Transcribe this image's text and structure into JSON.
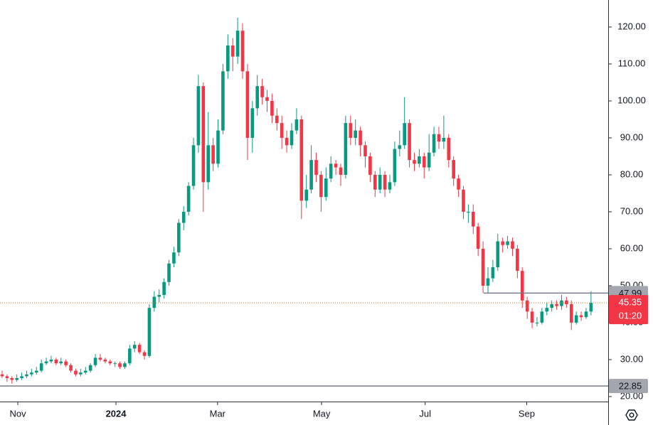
{
  "chart_data": {
    "type": "candlestick",
    "up_color": "#089981",
    "down_color": "#f23645",
    "grid": false,
    "ylim": [
      18.65,
      127.3
    ],
    "yticks": [
      {
        "value": 20,
        "label": "20.00"
      },
      {
        "value": 30,
        "label": "30.00"
      },
      {
        "value": 40,
        "label": "40.00"
      },
      {
        "value": 50,
        "label": "50.00"
      },
      {
        "value": 60,
        "label": "60.00"
      },
      {
        "value": 70,
        "label": "70.00"
      },
      {
        "value": 80,
        "label": "80.00"
      },
      {
        "value": 90,
        "label": "90.00"
      },
      {
        "value": 100,
        "label": "100.00"
      },
      {
        "value": 110,
        "label": "110.00"
      },
      {
        "value": 120,
        "label": "120.00"
      }
    ],
    "xlim": [
      -0.43,
      123.5
    ],
    "xticks": [
      {
        "value": 3.2,
        "label": "Nov"
      },
      {
        "value": 23.2,
        "label": "2024"
      },
      {
        "value": 43.9,
        "label": "Mar"
      },
      {
        "value": 65.1,
        "label": "May"
      },
      {
        "value": 86.2,
        "label": "Jul"
      },
      {
        "value": 106.9,
        "label": "Sep"
      }
    ],
    "open": [
      26,
      25.5,
      25,
      24.5,
      25,
      25.5,
      26,
      26.5,
      27,
      29,
      29.5,
      30,
      29,
      29.5,
      28.5,
      27,
      26,
      26.5,
      27,
      28.5,
      30.5,
      30,
      29.5,
      29,
      29,
      28,
      29,
      33,
      34,
      32,
      31,
      44,
      47,
      47.5,
      51,
      56,
      59,
      67,
      70,
      77,
      88,
      104,
      78,
      88,
      83,
      92,
      108,
      115,
      112,
      119,
      108,
      90,
      98,
      104,
      101,
      100,
      96,
      94,
      90,
      88,
      92,
      95,
      73,
      76,
      84,
      80,
      74,
      79,
      83,
      82,
      80,
      94,
      90,
      92,
      88,
      85,
      80,
      76,
      80,
      76,
      78,
      87,
      88,
      94,
      84,
      83,
      85,
      82,
      86,
      91,
      89,
      90,
      84,
      79,
      76,
      70,
      70,
      66,
      60,
      50,
      52,
      55,
      62,
      61,
      62,
      60,
      54,
      46,
      43,
      40,
      40,
      43,
      44,
      45,
      44.5,
      46,
      45,
      40,
      42,
      41.5,
      43
    ],
    "high": [
      27,
      26,
      25.5,
      26,
      26.5,
      27,
      27.5,
      28,
      30,
      30.5,
      31,
      30.5,
      30.5,
      30,
      29,
      27.5,
      27.5,
      28,
      29,
      31.5,
      31.5,
      30.5,
      30,
      29.5,
      29.5,
      29.5,
      34,
      35,
      34.5,
      32.5,
      45,
      48.5,
      49,
      52,
      57,
      60.5,
      68,
      71.5,
      78,
      90,
      107,
      105,
      97,
      90,
      95,
      110,
      118,
      117,
      122.5,
      121,
      110,
      100,
      107,
      106,
      103,
      102,
      98,
      96,
      92,
      94,
      98,
      96,
      80,
      88,
      86,
      81,
      82,
      85,
      84,
      83,
      96,
      96,
      95,
      93,
      89,
      86,
      81,
      82,
      81,
      80,
      89,
      92,
      101,
      95,
      86,
      87,
      86,
      91,
      93,
      93,
      96,
      91,
      85,
      80,
      77,
      72,
      72,
      67,
      62,
      55,
      57,
      64,
      63,
      63.5,
      63,
      61,
      55,
      47,
      44,
      41.5,
      44,
      45.5,
      46,
      46,
      47.5,
      47,
      46,
      43,
      43,
      44,
      48.5
    ],
    "low": [
      25,
      24,
      23.5,
      24,
      24.5,
      25,
      25.5,
      26,
      26.5,
      28.5,
      29,
      28.5,
      28.5,
      28,
      26.5,
      25.5,
      25.5,
      26,
      26.5,
      28,
      29.5,
      29,
      28.5,
      28,
      27.5,
      27.5,
      28.5,
      32,
      31.5,
      30,
      30.5,
      43,
      45.5,
      46.5,
      50,
      55,
      58,
      65,
      69,
      76,
      86,
      70,
      76,
      81,
      82,
      91,
      106,
      108,
      110,
      106,
      84,
      86,
      96,
      99,
      97,
      94,
      92,
      87,
      86,
      87,
      91,
      68,
      71,
      75,
      78,
      70,
      73,
      78,
      80,
      77,
      79,
      88,
      88,
      85,
      82,
      78,
      74,
      75,
      74,
      75,
      77,
      85,
      87,
      82,
      81,
      82,
      79,
      81,
      85,
      87,
      87,
      82,
      77,
      74,
      68,
      67,
      64,
      58,
      48,
      48,
      51,
      54,
      59,
      60,
      58,
      52,
      44,
      41,
      38.5,
      39,
      39.5,
      42,
      43,
      43.5,
      43.5,
      44,
      38,
      39.5,
      40.5,
      41,
      42
    ],
    "close": [
      25.5,
      25,
      24.5,
      25,
      25.5,
      26,
      26.5,
      27,
      29,
      29.5,
      30,
      29,
      29.5,
      28.5,
      27,
      26,
      26.5,
      27,
      28.5,
      30.5,
      30,
      29.5,
      29,
      29,
      28,
      29,
      33,
      34,
      32,
      31,
      44,
      47,
      47.5,
      51,
      56,
      59,
      67,
      70,
      77,
      88,
      104,
      78,
      88,
      83,
      92,
      108,
      115,
      112,
      119,
      108,
      90,
      98,
      104,
      101,
      100,
      96,
      94,
      90,
      88,
      92,
      95,
      73,
      76,
      84,
      80,
      74,
      79,
      83,
      82,
      80,
      94,
      90,
      92,
      88,
      85,
      80,
      76,
      80,
      76,
      78,
      87,
      88,
      94,
      84,
      83,
      85,
      82,
      86,
      91,
      89,
      90,
      84,
      79,
      76,
      70,
      70,
      66,
      60,
      50,
      52,
      55,
      62,
      61,
      62,
      60,
      54,
      46,
      43,
      40,
      40,
      43,
      44,
      45,
      44.5,
      46,
      45,
      40,
      42,
      41.5,
      43,
      45.35
    ],
    "price_lines": [
      47.99,
      22.85
    ],
    "last_price": 45.35,
    "countdown": "01:20"
  }
}
